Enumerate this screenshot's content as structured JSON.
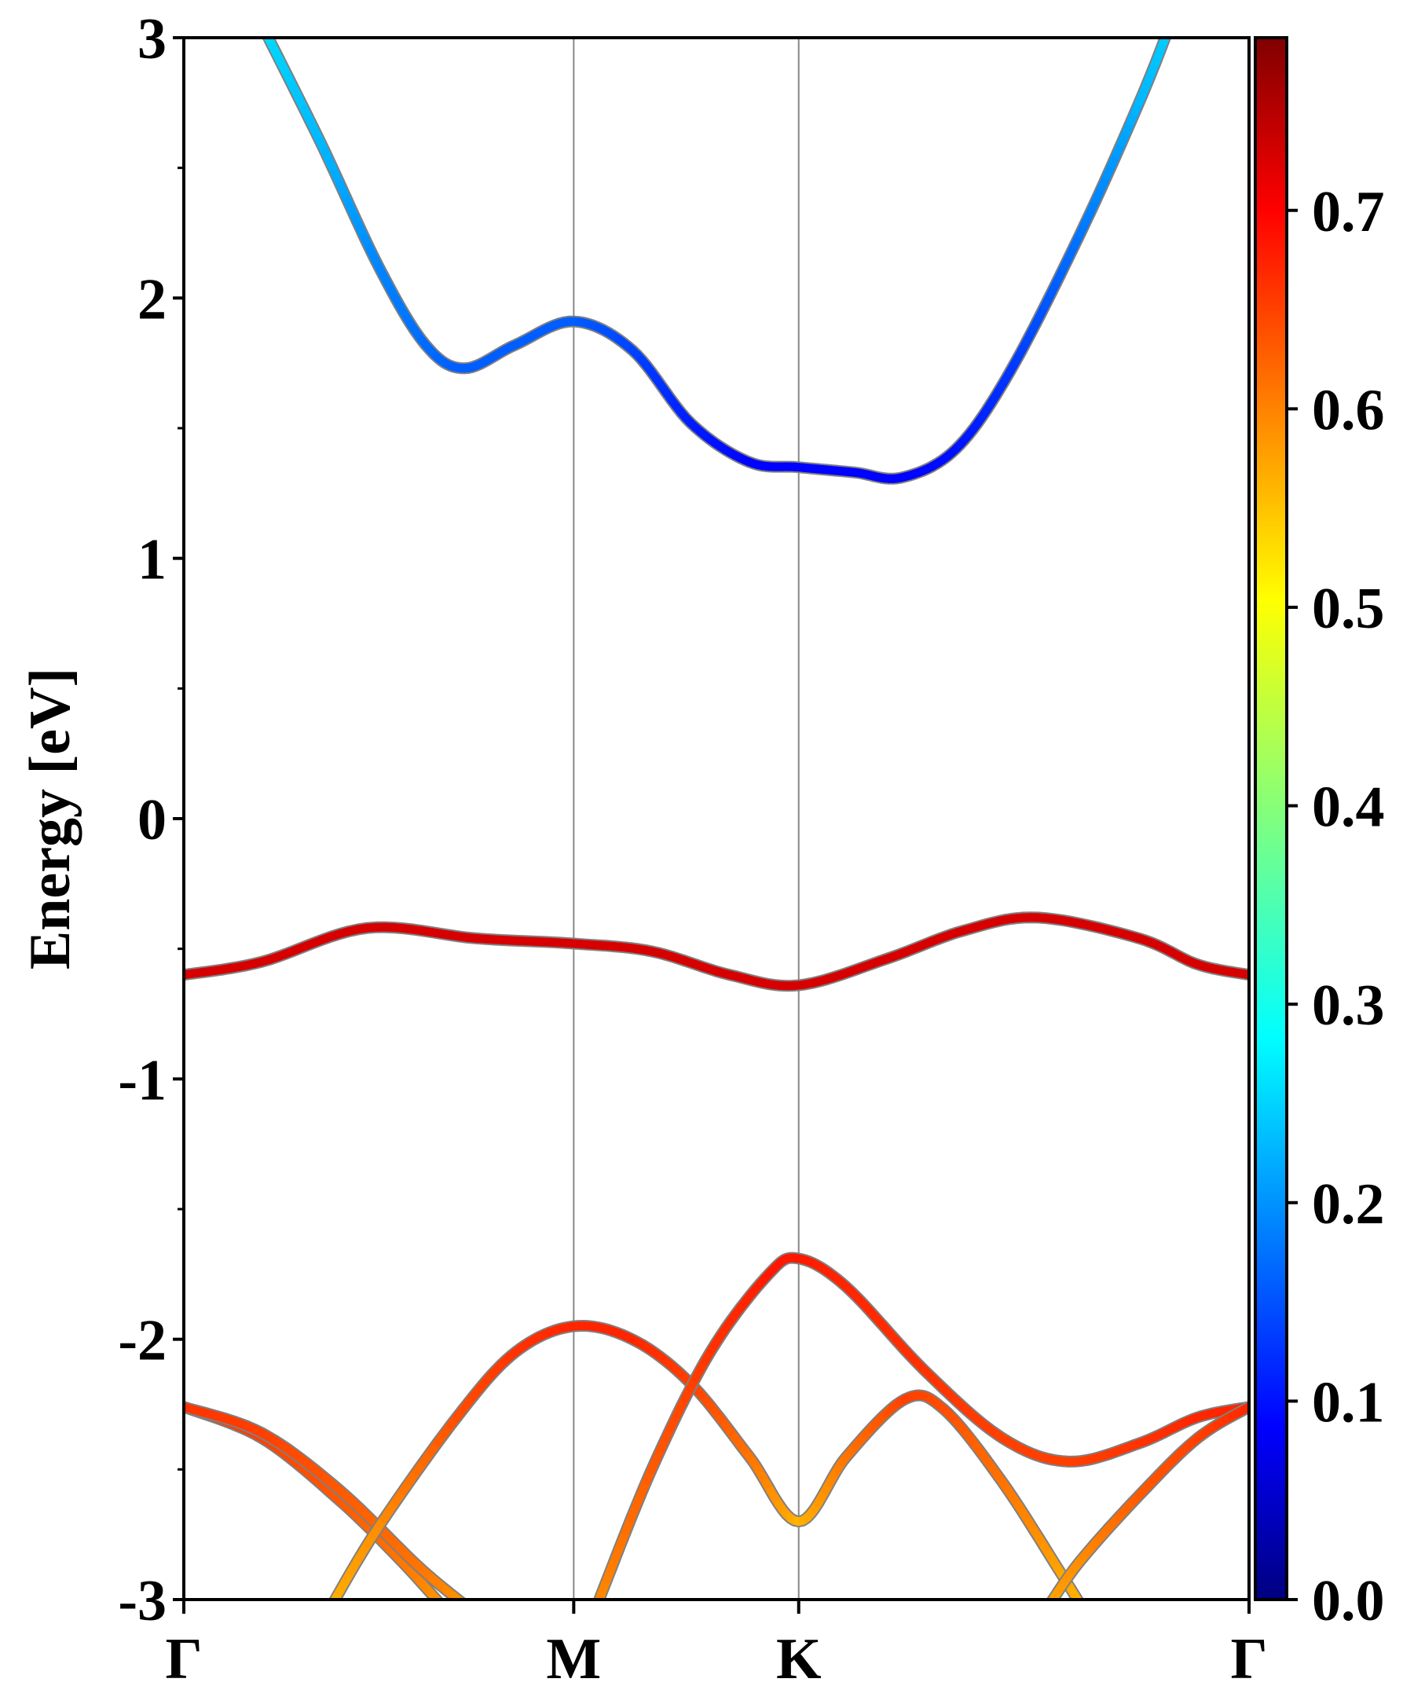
{
  "chart_data": {
    "type": "line",
    "title": "",
    "xlabel": "",
    "ylabel": "Energy [eV]",
    "ylim": [
      -3,
      3
    ],
    "xlim": [
      0,
      2.732
    ],
    "yticks": [
      "-3",
      "-2",
      "-1",
      "0",
      "1",
      "2",
      "3"
    ],
    "ytick_values": [
      -3,
      -2,
      -1,
      0,
      1,
      2,
      3
    ],
    "kpoints": [
      {
        "label": "Γ",
        "x": 0
      },
      {
        "label": "M",
        "x": 1.0
      },
      {
        "label": "K",
        "x": 1.577
      },
      {
        "label": "Γ",
        "x": 2.732
      }
    ],
    "colorbar": {
      "colormap": "jet",
      "range": [
        0,
        0.787
      ],
      "ticks": [
        "0.0",
        "0.1",
        "0.2",
        "0.3",
        "0.4",
        "0.5",
        "0.6",
        "0.7"
      ],
      "tick_values": [
        0,
        0.1,
        0.2,
        0.3,
        0.4,
        0.5,
        0.6,
        0.7
      ]
    },
    "series": [
      {
        "name": "band-conduction",
        "points": [
          [
            0.2,
            3.05,
            0.27
          ],
          [
            0.35,
            2.6,
            0.24
          ],
          [
            0.5,
            2.12,
            0.2
          ],
          [
            0.62,
            1.82,
            0.18
          ],
          [
            0.72,
            1.73,
            0.17
          ],
          [
            0.85,
            1.82,
            0.17
          ],
          [
            1.0,
            1.91,
            0.17
          ],
          [
            1.15,
            1.8,
            0.15
          ],
          [
            1.3,
            1.52,
            0.12
          ],
          [
            1.45,
            1.37,
            0.1
          ],
          [
            1.577,
            1.35,
            0.1
          ],
          [
            1.72,
            1.33,
            0.1
          ],
          [
            1.84,
            1.31,
            0.1
          ],
          [
            1.98,
            1.42,
            0.11
          ],
          [
            2.12,
            1.72,
            0.14
          ],
          [
            2.3,
            2.25,
            0.19
          ],
          [
            2.45,
            2.75,
            0.24
          ],
          [
            2.53,
            3.05,
            0.26
          ]
        ]
      },
      {
        "name": "band-flat",
        "points": [
          [
            0,
            -0.6,
            0.72
          ],
          [
            0.2,
            -0.55,
            0.72
          ],
          [
            0.47,
            -0.42,
            0.72
          ],
          [
            0.75,
            -0.46,
            0.72
          ],
          [
            1.0,
            -0.48,
            0.72
          ],
          [
            1.2,
            -0.51,
            0.72
          ],
          [
            1.4,
            -0.6,
            0.72
          ],
          [
            1.577,
            -0.64,
            0.72
          ],
          [
            1.8,
            -0.54,
            0.72
          ],
          [
            2.0,
            -0.43,
            0.72
          ],
          [
            2.19,
            -0.38,
            0.72
          ],
          [
            2.45,
            -0.46,
            0.72
          ],
          [
            2.6,
            -0.56,
            0.72
          ],
          [
            2.732,
            -0.6,
            0.72
          ]
        ]
      },
      {
        "name": "band-low-1",
        "points": [
          [
            0,
            -2.26,
            0.65
          ],
          [
            0.2,
            -2.38,
            0.64
          ],
          [
            0.4,
            -2.62,
            0.62
          ],
          [
            0.55,
            -2.84,
            0.6
          ],
          [
            0.66,
            -3.02,
            0.57
          ]
        ]
      },
      {
        "name": "band-low-2",
        "points": [
          [
            0,
            -2.26,
            0.65
          ],
          [
            0.2,
            -2.36,
            0.64
          ],
          [
            0.4,
            -2.58,
            0.62
          ],
          [
            0.6,
            -2.87,
            0.6
          ],
          [
            0.72,
            -3.02,
            0.57
          ]
        ]
      },
      {
        "name": "band-low-3",
        "points": [
          [
            0.38,
            -3.02,
            0.55
          ],
          [
            0.5,
            -2.72,
            0.58
          ],
          [
            0.7,
            -2.3,
            0.63
          ],
          [
            0.85,
            -2.05,
            0.65
          ],
          [
            1.0,
            -1.95,
            0.66
          ],
          [
            1.15,
            -2.0,
            0.66
          ],
          [
            1.3,
            -2.17,
            0.64
          ],
          [
            1.45,
            -2.45,
            0.6
          ],
          [
            1.577,
            -2.7,
            0.55
          ],
          [
            1.7,
            -2.45,
            0.6
          ],
          [
            1.85,
            -2.23,
            0.64
          ],
          [
            1.95,
            -2.27,
            0.63
          ],
          [
            2.1,
            -2.55,
            0.6
          ],
          [
            2.25,
            -2.9,
            0.56
          ],
          [
            2.3,
            -3.02,
            0.55
          ]
        ]
      },
      {
        "name": "band-low-4",
        "points": [
          [
            1.06,
            -3.02,
            0.58
          ],
          [
            1.2,
            -2.5,
            0.62
          ],
          [
            1.35,
            -2.05,
            0.65
          ],
          [
            1.5,
            -1.75,
            0.67
          ],
          [
            1.577,
            -1.69,
            0.67
          ],
          [
            1.7,
            -1.8,
            0.66
          ],
          [
            1.9,
            -2.12,
            0.65
          ],
          [
            2.1,
            -2.38,
            0.64
          ],
          [
            2.27,
            -2.47,
            0.64
          ],
          [
            2.45,
            -2.4,
            0.65
          ],
          [
            2.6,
            -2.3,
            0.66
          ],
          [
            2.732,
            -2.26,
            0.66
          ]
        ]
      },
      {
        "name": "band-low-5",
        "points": [
          [
            2.22,
            -3.02,
            0.56
          ],
          [
            2.3,
            -2.85,
            0.58
          ],
          [
            2.45,
            -2.6,
            0.62
          ],
          [
            2.6,
            -2.38,
            0.64
          ],
          [
            2.732,
            -2.26,
            0.66
          ]
        ]
      }
    ]
  }
}
